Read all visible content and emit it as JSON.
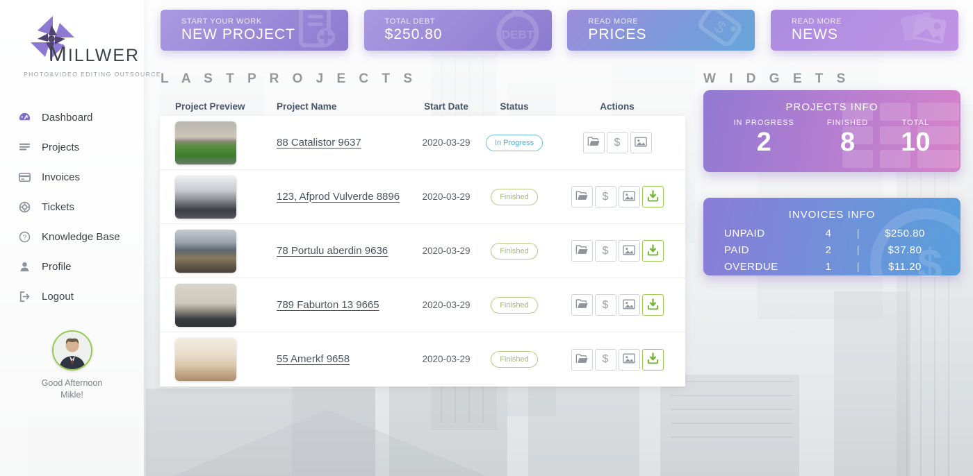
{
  "app": {
    "brand": "MILLWER",
    "brand_tagline": "PHOTO&VIDEO  EDITING  OUTSOURCE"
  },
  "sidebar": {
    "items": [
      {
        "label": "Dashboard",
        "icon": "dashboard-icon",
        "active": true
      },
      {
        "label": "Projects",
        "icon": "projects-icon",
        "active": false
      },
      {
        "label": "Invoices",
        "icon": "invoices-icon",
        "active": false
      },
      {
        "label": "Tickets",
        "icon": "tickets-icon",
        "active": false
      },
      {
        "label": "Knowledge Base",
        "icon": "knowledge-base-icon",
        "active": false
      },
      {
        "label": "Profile",
        "icon": "profile-icon",
        "active": false
      },
      {
        "label": "Logout",
        "icon": "logout-icon",
        "active": false
      }
    ],
    "greeting_line1": "Good Afternoon",
    "greeting_line2": "Mikle!"
  },
  "top_cards": [
    {
      "subtitle": "START YOUR WORK",
      "title": "NEW PROJECT",
      "icon": "new-project-icon",
      "gradient_from": "#a89ae0",
      "gradient_to": "#8c7bd0"
    },
    {
      "subtitle": "TOTAL DEBT",
      "title": "$250.80",
      "icon": "debt-icon",
      "gradient_from": "#a89ae0",
      "gradient_to": "#8c7bd0"
    },
    {
      "subtitle": "READ MORE",
      "title": "PRICES",
      "icon": "price-tag-icon",
      "gradient_from": "#9d8cda",
      "gradient_to": "#64a5da"
    },
    {
      "subtitle": "READ MORE",
      "title": "NEWS",
      "icon": "news-icon",
      "gradient_from": "#ab8ce0",
      "gradient_to": "#c193e4"
    }
  ],
  "projects": {
    "section_title": "L A S T   P R O J E C T S",
    "columns": [
      "Project Preview",
      "Project Name",
      "Start Date",
      "Status",
      "Actions"
    ],
    "rows": [
      {
        "name": "88 Catalistor 9637",
        "date": "2020-03-29",
        "status": "In Progress",
        "thumb": "house-front-lawn",
        "actions": [
          "open-folder",
          "invoice-dollar",
          "gallery"
        ],
        "download": false
      },
      {
        "name": "123, Afprod Vulverde 8896",
        "date": "2020-03-29",
        "status": "Finished",
        "thumb": "living-room",
        "actions": [
          "open-folder",
          "invoice-dollar",
          "gallery"
        ],
        "download": true
      },
      {
        "name": "78 Portulu aberdin 9636",
        "date": "2020-03-29",
        "status": "Finished",
        "thumb": "house-exterior",
        "actions": [
          "open-folder",
          "invoice-dollar",
          "gallery"
        ],
        "download": true
      },
      {
        "name": "789 Faburton 13 9665",
        "date": "2020-03-29",
        "status": "Finished",
        "thumb": "apartment-building",
        "actions": [
          "open-folder",
          "invoice-dollar",
          "gallery"
        ],
        "download": true
      },
      {
        "name": "55 Amerkf 9658",
        "date": "2020-03-29",
        "status": "Finished",
        "thumb": "bedroom-interior",
        "actions": [
          "open-folder",
          "invoice-dollar",
          "gallery"
        ],
        "download": true
      }
    ]
  },
  "widgets": {
    "section_title": "W I D G E T S",
    "projects_info": {
      "title": "PROJECTS INFO",
      "stats": [
        {
          "label": "IN PROGRESS",
          "value": "2"
        },
        {
          "label": "FINISHED",
          "value": "8"
        },
        {
          "label": "TOTAL",
          "value": "10"
        }
      ]
    },
    "invoices_info": {
      "title": "INVOICES INFO",
      "rows": [
        {
          "label": "UNPAID",
          "count": "4",
          "amount": "$250.80"
        },
        {
          "label": "PAID",
          "count": "2",
          "amount": "$37.80"
        },
        {
          "label": "OVERDUE",
          "count": "1",
          "amount": "$11.20"
        }
      ]
    }
  },
  "colors": {
    "accent_purple": "#8c7bd0",
    "accent_blue": "#589fdc",
    "accent_pink": "#d583c8",
    "status_in_progress": "#4fb1d3",
    "status_finished": "#a0bd68",
    "download_green": "#76b82a",
    "avatar_ring": "#97c94e"
  }
}
